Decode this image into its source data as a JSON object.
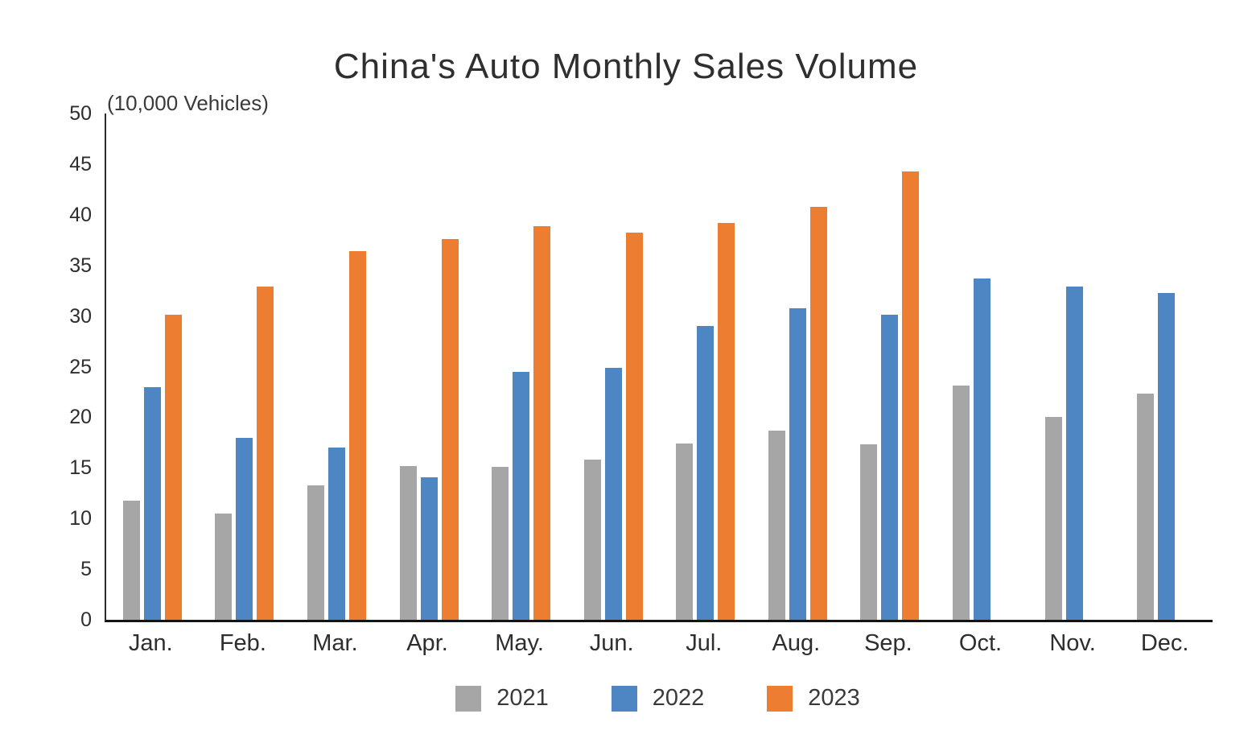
{
  "chart_data": {
    "type": "bar",
    "title": "China's Auto Monthly Sales Volume",
    "unit_label": "(10,000 Vehicles)",
    "categories": [
      "Jan.",
      "Feb.",
      "Mar.",
      "Apr.",
      "May.",
      "Jun.",
      "Jul.",
      "Aug.",
      "Sep.",
      "Oct.",
      "Nov.",
      "Dec."
    ],
    "series": [
      {
        "name": "2021",
        "color": "#A6A6A6",
        "values": [
          11.8,
          10.5,
          13.3,
          15.2,
          15.1,
          15.8,
          17.4,
          18.7,
          17.3,
          23.1,
          20.0,
          22.3
        ]
      },
      {
        "name": "2022",
        "color": "#4E86C4",
        "values": [
          23.0,
          18.0,
          17.0,
          14.1,
          24.5,
          24.9,
          29.0,
          30.8,
          30.1,
          33.7,
          32.9,
          32.3
        ]
      },
      {
        "name": "2023",
        "color": "#ED7D31",
        "values": [
          30.1,
          32.9,
          36.4,
          37.6,
          38.9,
          38.2,
          39.2,
          40.8,
          44.3,
          null,
          null,
          null
        ]
      }
    ],
    "ylim": [
      0,
      50
    ],
    "yticks": [
      0,
      5,
      10,
      15,
      20,
      25,
      30,
      35,
      40,
      45,
      50
    ],
    "grid": false,
    "legend_position": "bottom"
  }
}
